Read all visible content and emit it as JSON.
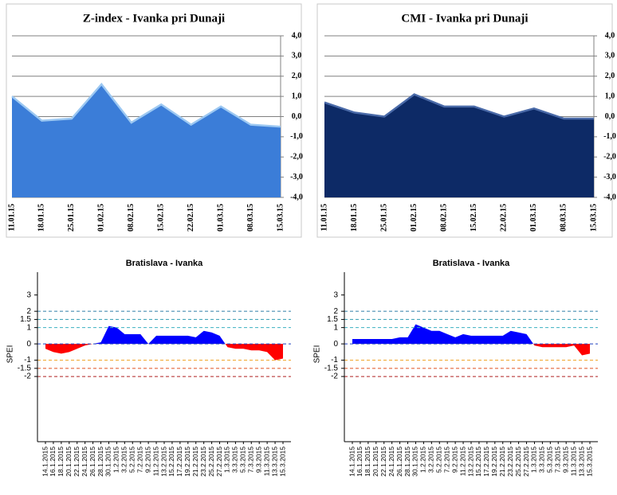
{
  "chart_data": [
    {
      "type": "area",
      "title": "Z-index - Ivanka pri Dunaji",
      "categories": [
        "11.01.15",
        "18.01.15",
        "25.01.15",
        "01.02.15",
        "08.02.15",
        "15.02.15",
        "22.02.15",
        "01.03.15",
        "08.03.15",
        "15.03.15"
      ],
      "values": [
        1.0,
        -0.2,
        -0.1,
        1.6,
        -0.3,
        0.6,
        -0.4,
        0.5,
        -0.4,
        -0.5
      ],
      "color": "#3b7dd8",
      "line_color": "#9cc8f2",
      "ylim": [
        -4,
        4
      ],
      "yticks": [
        {
          "value": 4,
          "label": "4,0"
        },
        {
          "value": 3,
          "label": "3,0"
        },
        {
          "value": 2,
          "label": "2,0"
        },
        {
          "value": 1,
          "label": "1,0"
        },
        {
          "value": 0,
          "label": "0,0"
        },
        {
          "value": -1,
          "label": "-1,0"
        },
        {
          "value": -2,
          "label": "-2,0"
        },
        {
          "value": -3,
          "label": "-3,0"
        },
        {
          "value": -4,
          "label": "-4,0"
        }
      ],
      "grid": true
    },
    {
      "type": "area",
      "title": "CMI - Ivanka pri Dunaji",
      "categories": [
        "11.01.15",
        "18.01.15",
        "25.01.15",
        "01.02.15",
        "08.02.15",
        "15.02.15",
        "22.02.15",
        "01.03.15",
        "08.03.15",
        "15.03.15"
      ],
      "values": [
        0.7,
        0.2,
        0.0,
        1.1,
        0.5,
        0.5,
        0.0,
        0.4,
        -0.1,
        -0.1
      ],
      "color": "#0d2a66",
      "line_color": "#4a6aa8",
      "ylim": [
        -4,
        4
      ],
      "yticks": [
        {
          "value": 4,
          "label": "4,0"
        },
        {
          "value": 3,
          "label": "3,0"
        },
        {
          "value": 2,
          "label": "2,0"
        },
        {
          "value": 1,
          "label": "1,0"
        },
        {
          "value": 0,
          "label": "0,0"
        },
        {
          "value": -1,
          "label": "-1,0"
        },
        {
          "value": -2,
          "label": "-2,0"
        },
        {
          "value": -3,
          "label": "-3,0"
        },
        {
          "value": -4,
          "label": "-4,0"
        }
      ],
      "grid": true
    },
    {
      "type": "spei",
      "title": "Bratislava - Ivanka",
      "y_label": "SPEI",
      "categories": [
        "14.1.2015",
        "16.1.2015",
        "18.1.2015",
        "20.1.2015",
        "22.1.2015",
        "24.1.2015",
        "26.1.2015",
        "28.1.2015",
        "30.1.2015",
        "1.2.2015",
        "3.2.2015",
        "5.2.2015",
        "7.2.2015",
        "9.2.2015",
        "11.2.2015",
        "13.2.2015",
        "15.2.2015",
        "17.2.2015",
        "19.2.2015",
        "21.2.2015",
        "23.2.2015",
        "25.2.2015",
        "27.2.2015",
        "1.3.2015",
        "3.3.2015",
        "5.3.2015",
        "7.3.2015",
        "9.3.2015",
        "11.3.2015",
        "13.3.2015",
        "15.3.2015"
      ],
      "values": [
        -0.3,
        -0.5,
        -0.6,
        -0.5,
        -0.3,
        -0.1,
        0.0,
        0.1,
        1.1,
        1.0,
        0.6,
        0.6,
        0.6,
        0.0,
        0.5,
        0.5,
        0.5,
        0.5,
        0.5,
        0.4,
        0.8,
        0.7,
        0.5,
        -0.2,
        -0.3,
        -0.3,
        -0.4,
        -0.4,
        -0.5,
        -1.0,
        -0.9
      ],
      "positive_color": "#0000ff",
      "negative_color": "#ff0000",
      "ylim": [
        -6,
        4.4
      ],
      "yticks": [
        3,
        2,
        1.5,
        1,
        0,
        -1,
        -1.5,
        -2
      ],
      "reference_lines": [
        {
          "value": 2,
          "color": "#2f7fa8"
        },
        {
          "value": 1.5,
          "color": "#2f9ab0"
        },
        {
          "value": 1,
          "color": "#3ab0c0"
        },
        {
          "value": 0,
          "color": "#2040c0"
        },
        {
          "value": -1,
          "color": "#f0a020"
        },
        {
          "value": -1.5,
          "color": "#e05020"
        },
        {
          "value": -2,
          "color": "#b02020"
        }
      ]
    },
    {
      "type": "spei",
      "title": "Bratislava - Ivanka",
      "y_label": "SPEI",
      "categories": [
        "14.1.2015",
        "16.1.2015",
        "18.1.2015",
        "20.1.2015",
        "22.1.2015",
        "24.1.2015",
        "26.1.2015",
        "28.1.2015",
        "30.1.2015",
        "1.2.2015",
        "3.2.2015",
        "5.2.2015",
        "7.2.2015",
        "9.2.2015",
        "11.2.2015",
        "13.2.2015",
        "15.2.2015",
        "17.2.2015",
        "19.2.2015",
        "21.2.2015",
        "23.2.2015",
        "25.2.2015",
        "27.2.2015",
        "1.3.2015",
        "3.3.2015",
        "5.3.2015",
        "7.3.2015",
        "9.3.2015",
        "11.3.2015",
        "13.3.2015",
        "15.3.2015"
      ],
      "values": [
        0.3,
        0.3,
        0.3,
        0.3,
        0.3,
        0.3,
        0.4,
        0.4,
        1.2,
        1.0,
        0.8,
        0.8,
        0.6,
        0.4,
        0.6,
        0.5,
        0.5,
        0.5,
        0.5,
        0.5,
        0.8,
        0.7,
        0.6,
        -0.1,
        -0.2,
        -0.2,
        -0.2,
        -0.2,
        -0.1,
        -0.7,
        -0.6
      ],
      "positive_color": "#0000ff",
      "negative_color": "#ff0000",
      "ylim": [
        -6,
        4.4
      ],
      "yticks": [
        3,
        2,
        1.5,
        1,
        0,
        -1,
        -1.5,
        -2
      ],
      "reference_lines": [
        {
          "value": 2,
          "color": "#2f7fa8"
        },
        {
          "value": 1.5,
          "color": "#2f9ab0"
        },
        {
          "value": 1,
          "color": "#3ab0c0"
        },
        {
          "value": 0,
          "color": "#2040c0"
        },
        {
          "value": -1,
          "color": "#f0a020"
        },
        {
          "value": -1.5,
          "color": "#e05020"
        },
        {
          "value": -2,
          "color": "#b02020"
        }
      ]
    }
  ]
}
